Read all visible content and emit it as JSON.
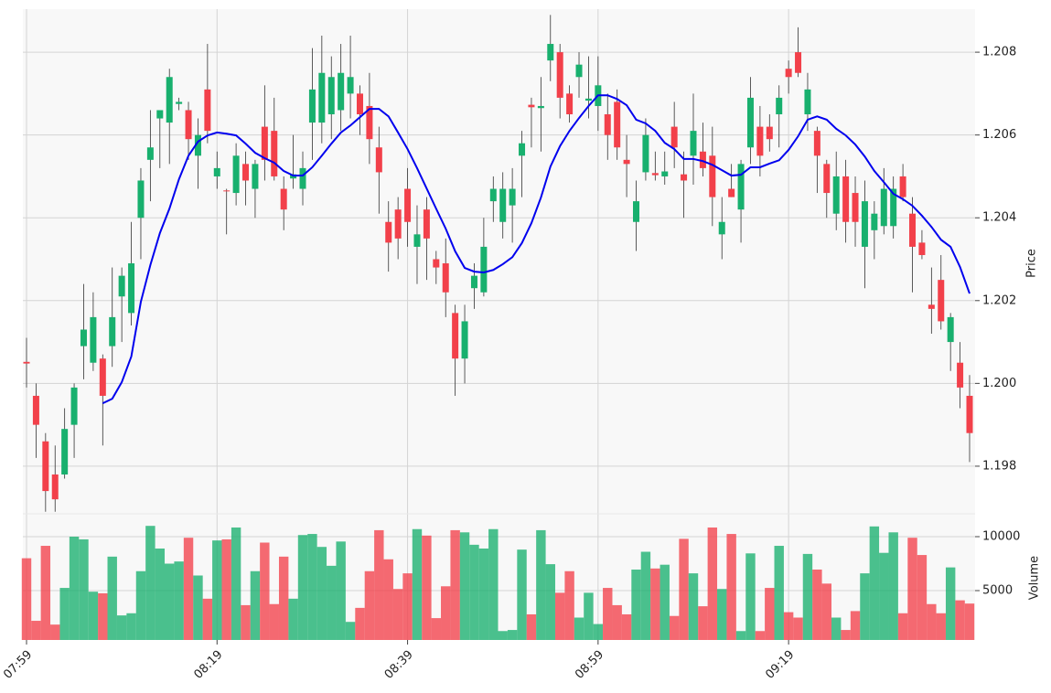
{
  "chart_data": {
    "type": "candlestick",
    "categories": [
      "07:59",
      null,
      null,
      null,
      null,
      null,
      null,
      null,
      null,
      null,
      null,
      null,
      null,
      null,
      null,
      null,
      null,
      null,
      null,
      null,
      "08:19",
      null,
      null,
      null,
      null,
      null,
      null,
      null,
      null,
      null,
      null,
      null,
      null,
      null,
      null,
      null,
      null,
      null,
      null,
      null,
      "08:39",
      null,
      null,
      null,
      null,
      null,
      null,
      null,
      null,
      null,
      null,
      null,
      null,
      null,
      null,
      null,
      null,
      null,
      null,
      null,
      "08:59",
      null,
      null,
      null,
      null,
      null,
      null,
      null,
      null,
      null,
      null,
      null,
      null,
      null,
      null,
      null,
      null,
      null,
      null,
      null,
      "09:19",
      null,
      null,
      null,
      null,
      null,
      null,
      null,
      null,
      null,
      null,
      null,
      null,
      null,
      null,
      null,
      null,
      null,
      null,
      null
    ],
    "open": [
      1.20052,
      1.1997,
      1.1986,
      1.1978,
      1.1978,
      1.199,
      1.2009,
      1.2005,
      1.2006,
      1.2009,
      1.2021,
      1.2017,
      1.204,
      1.2054,
      1.2064,
      1.2063,
      1.20675,
      1.2066,
      1.2055,
      1.2071,
      1.205,
      1.20466,
      1.2046,
      1.2053,
      1.2047,
      1.2062,
      1.2061,
      1.2047,
      1.20495,
      1.2047,
      1.2063,
      1.2063,
      1.2065,
      1.2066,
      1.207,
      1.207,
      1.2067,
      1.2057,
      1.2039,
      1.2042,
      1.2047,
      1.2033,
      1.2042,
      1.203,
      1.2029,
      1.2017,
      1.2006,
      1.2023,
      1.2022,
      1.2044,
      1.2039,
      1.2043,
      1.2055,
      1.20673,
      1.20665,
      1.2078,
      1.208,
      1.207,
      1.2074,
      1.20683,
      1.2067,
      1.2065,
      1.2068,
      1.2054,
      1.2039,
      1.2051,
      1.20508,
      1.205,
      1.2062,
      1.20505,
      1.2055,
      1.2056,
      1.2055,
      1.2036,
      1.2047,
      1.2042,
      1.2057,
      1.2062,
      1.2062,
      1.2065,
      1.2076,
      1.208,
      1.2065,
      1.2061,
      1.2053,
      1.2041,
      1.205,
      1.2046,
      1.2033,
      1.2037,
      1.2038,
      1.2038,
      1.205,
      1.2041,
      1.2034,
      1.2019,
      1.2025,
      1.201,
      1.2005,
      1.1997
    ],
    "high": [
      1.2011,
      1.2,
      1.1988,
      1.1985,
      1.1994,
      1.2,
      1.2024,
      1.2022,
      1.2007,
      1.2028,
      1.2028,
      1.2039,
      1.2052,
      1.2066,
      1.2066,
      1.2076,
      1.2069,
      1.2068,
      1.2064,
      1.2082,
      1.2056,
      1.2047,
      1.2058,
      1.2056,
      1.2054,
      1.2072,
      1.2069,
      1.205,
      1.206,
      1.2056,
      1.2081,
      1.2084,
      1.2079,
      1.2082,
      1.2084,
      1.2072,
      1.2075,
      1.2062,
      1.2044,
      1.2045,
      1.2052,
      1.2043,
      1.2045,
      1.2032,
      1.2035,
      1.2019,
      1.2019,
      1.2029,
      1.204,
      1.205,
      1.2051,
      1.2052,
      1.2061,
      1.2069,
      1.2074,
      1.2089,
      1.2082,
      1.2072,
      1.208,
      1.2079,
      1.2079,
      1.207,
      1.2071,
      1.206,
      1.2049,
      1.2064,
      1.2056,
      1.2056,
      1.2068,
      1.2056,
      1.207,
      1.2063,
      1.2062,
      1.2045,
      1.2053,
      1.2054,
      1.2074,
      1.2067,
      1.2065,
      1.2072,
      1.2078,
      1.2086,
      1.2075,
      1.2062,
      1.2054,
      1.2056,
      1.2054,
      1.205,
      1.2049,
      1.2044,
      1.2052,
      1.205,
      1.2053,
      1.2045,
      1.2037,
      1.2028,
      1.2031,
      1.2017,
      1.201,
      1.2002
    ],
    "low": [
      1.1999,
      1.1982,
      1.1969,
      1.1969,
      1.1977,
      1.1982,
      1.2001,
      1.2003,
      1.1985,
      1.2004,
      1.201,
      1.2014,
      1.203,
      1.2044,
      1.2052,
      1.2053,
      1.2066,
      1.2054,
      1.2047,
      1.2058,
      1.2047,
      1.2036,
      1.2043,
      1.2043,
      1.204,
      1.2049,
      1.2049,
      1.2037,
      1.2047,
      1.2043,
      1.2054,
      1.2058,
      1.2059,
      1.2061,
      1.2064,
      1.206,
      1.2053,
      1.2041,
      1.2027,
      1.203,
      1.2033,
      1.2024,
      1.2025,
      1.2024,
      1.2016,
      1.1997,
      1.2,
      1.2018,
      1.2021,
      1.2039,
      1.2035,
      1.2034,
      1.2045,
      1.2057,
      1.2056,
      1.2073,
      1.2064,
      1.2063,
      1.2069,
      1.2064,
      1.2061,
      1.2054,
      1.2054,
      1.2045,
      1.2032,
      1.2049,
      1.2049,
      1.2048,
      1.2052,
      1.204,
      1.2048,
      1.205,
      1.2038,
      1.203,
      1.2045,
      1.2034,
      1.2053,
      1.205,
      1.2056,
      1.2057,
      1.207,
      1.2074,
      1.2061,
      1.2046,
      1.204,
      1.2037,
      1.2034,
      1.2033,
      1.2023,
      1.203,
      1.2036,
      1.2035,
      1.2044,
      1.2022,
      1.203,
      1.2012,
      1.2013,
      1.2003,
      1.1994,
      1.1981
    ],
    "close": [
      1.20048,
      1.199,
      1.1974,
      1.1972,
      1.1989,
      1.1999,
      1.2013,
      1.2016,
      1.1997,
      1.2016,
      1.2026,
      1.2029,
      1.2049,
      1.2057,
      1.2066,
      1.2074,
      1.2068,
      1.2059,
      1.206,
      1.2061,
      1.2052,
      1.20464,
      1.2055,
      1.2049,
      1.2053,
      1.2054,
      1.205,
      1.2042,
      1.20505,
      1.2052,
      1.2071,
      1.2075,
      1.2074,
      1.2075,
      1.2074,
      1.2065,
      1.2059,
      1.2051,
      1.2034,
      1.2035,
      1.2039,
      1.2036,
      1.2035,
      1.2028,
      1.2022,
      1.2006,
      1.2015,
      1.2026,
      1.2033,
      1.2047,
      1.2047,
      1.2047,
      1.2058,
      1.20667,
      1.2067,
      1.2082,
      1.2069,
      1.2065,
      1.2077,
      1.20688,
      1.2072,
      1.206,
      1.2057,
      1.2053,
      1.2044,
      1.206,
      1.20503,
      1.20512,
      1.2057,
      1.2049,
      1.2061,
      1.2052,
      1.2045,
      1.2039,
      1.2045,
      1.2053,
      1.2069,
      1.2055,
      1.2059,
      1.2069,
      1.2074,
      1.2075,
      1.2071,
      1.2055,
      1.2046,
      1.205,
      1.2039,
      1.2039,
      1.2044,
      1.2041,
      1.2047,
      1.2047,
      1.2045,
      1.2033,
      1.2031,
      1.2018,
      1.2015,
      1.2016,
      1.1999,
      1.1988
    ],
    "volume": [
      8000,
      2200,
      9150,
      1850,
      5250,
      10000,
      9750,
      4900,
      4750,
      8150,
      2700,
      2900,
      6800,
      11000,
      8900,
      7500,
      7700,
      9900,
      6400,
      4250,
      9650,
      9750,
      10850,
      3650,
      6800,
      9450,
      3750,
      8150,
      4250,
      10150,
      10250,
      9050,
      7300,
      9550,
      2100,
      3400,
      6800,
      10600,
      7900,
      5150,
      6600,
      10700,
      10100,
      2450,
      5400,
      10600,
      10400,
      9250,
      8900,
      10700,
      1250,
      1350,
      8800,
      2800,
      10600,
      7450,
      4800,
      6800,
      2500,
      4800,
      1900,
      5250,
      3650,
      2800,
      6950,
      8600,
      7050,
      7400,
      2650,
      9800,
      6600,
      3550,
      10850,
      5150,
      10250,
      1250,
      8450,
      1250,
      5250,
      9150,
      3000,
      2500,
      8400,
      6950,
      5650,
      2500,
      1350,
      3100,
      6600,
      10950,
      8500,
      10400,
      2900,
      9900,
      8300,
      3750,
      2900,
      7150,
      4100,
      3800
    ],
    "ma": {
      "color": "#0000ee",
      "values": [
        null,
        null,
        null,
        null,
        null,
        null,
        null,
        null,
        1.19952,
        1.19963,
        1.20003,
        1.20065,
        1.20197,
        1.20286,
        1.20363,
        1.20422,
        1.20493,
        1.2055,
        1.20584,
        1.20599,
        1.20606,
        1.20603,
        1.20599,
        1.20579,
        1.20557,
        1.20544,
        1.20533,
        1.20513,
        1.20502,
        1.20502,
        1.20522,
        1.2055,
        1.20579,
        1.20606,
        1.20623,
        1.20643,
        1.20663,
        1.20663,
        1.20645,
        1.20606,
        1.20566,
        1.2052,
        1.20471,
        1.20422,
        1.20374,
        1.20319,
        1.20279,
        1.2027,
        1.20268,
        1.20274,
        1.20288,
        1.20305,
        1.20339,
        1.20387,
        1.20449,
        1.20524,
        1.20573,
        1.2061,
        1.20641,
        1.2067,
        1.20696,
        1.20696,
        1.20687,
        1.20672,
        1.20637,
        1.20628,
        1.2061,
        1.20581,
        1.20566,
        1.20542,
        1.20542,
        1.20537,
        1.20528,
        1.20515,
        1.20502,
        1.20504,
        1.20522,
        1.20522,
        1.20531,
        1.20539,
        1.20564,
        1.20597,
        1.20637,
        1.20645,
        1.20637,
        1.20615,
        1.20599,
        1.20577,
        1.20548,
        1.20513,
        1.20486,
        1.20458,
        1.20445,
        1.20429,
        1.20405,
        1.20378,
        1.20347,
        1.2033,
        1.20281,
        1.20217
      ]
    },
    "up_color": "#18b06e",
    "down_color": "#f2404a",
    "ylim": [
      1.19685,
      1.20904
    ],
    "yticks": [
      1.198,
      {
        "value": 1.2,
        "label": "1.200"
      },
      1.202,
      1.204,
      1.206,
      1.208
    ],
    "ylabel": "Price",
    "vlim": [
      424,
      12119
    ],
    "vticks": [
      5000,
      10000
    ],
    "vlabel": "Volume",
    "grid": true
  }
}
